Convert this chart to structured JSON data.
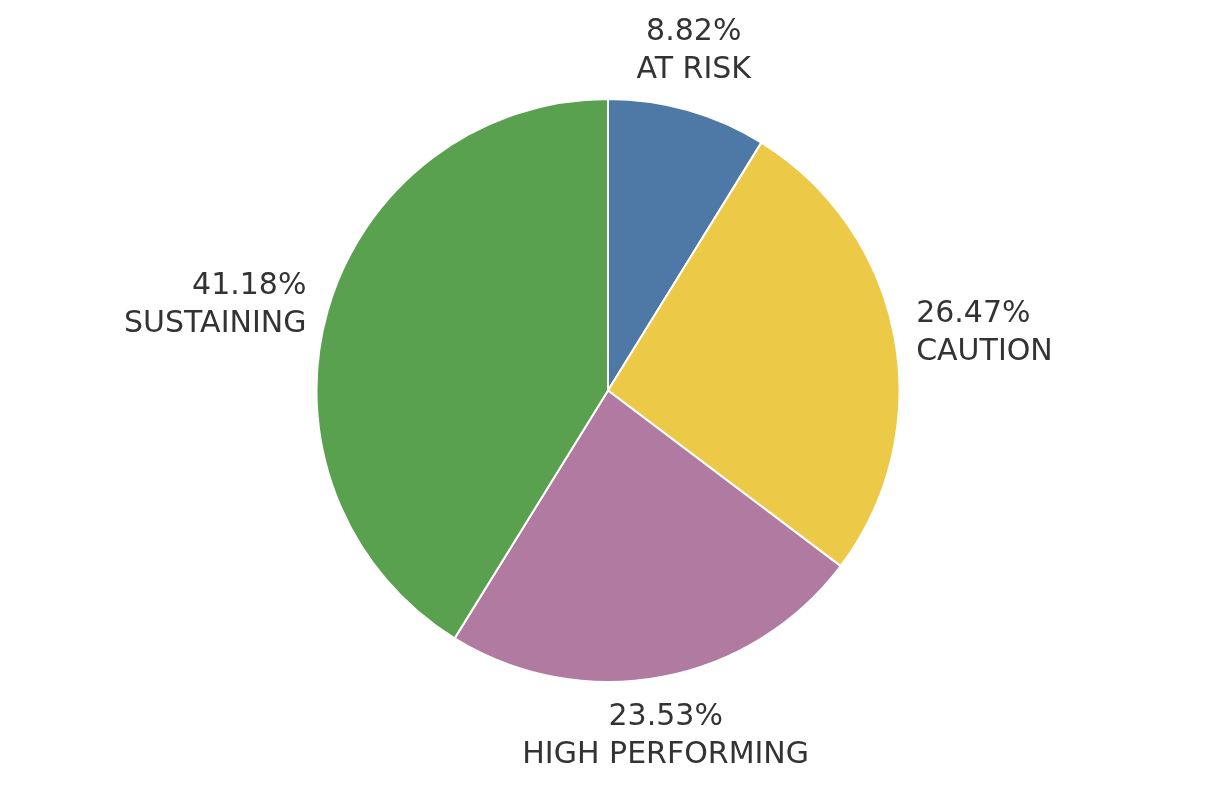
{
  "chart_data": {
    "type": "pie",
    "categories": [
      "AT RISK",
      "CAUTION",
      "HIGH PERFORMING",
      "SUSTAINING"
    ],
    "values": [
      8.82,
      26.47,
      23.53,
      41.18
    ],
    "colors": [
      "#4e79a7",
      "#edc948",
      "#b07aa1",
      "#59a14f"
    ],
    "value_labels": [
      "8.82%",
      "26.47%",
      "23.53%",
      "41.18%"
    ],
    "legend": false
  }
}
